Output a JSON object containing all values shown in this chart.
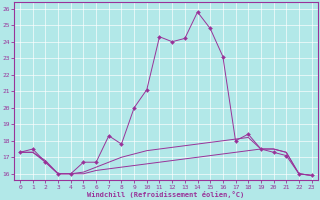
{
  "xlabel": "Windchill (Refroidissement éolien,°C)",
  "background_color": "#b2e8e8",
  "line_color": "#993399",
  "xlim": [
    -0.5,
    23.5
  ],
  "ylim": [
    15.6,
    26.4
  ],
  "yticks": [
    16,
    17,
    18,
    19,
    20,
    21,
    22,
    23,
    24,
    25,
    26
  ],
  "xticks": [
    0,
    1,
    2,
    3,
    4,
    5,
    6,
    7,
    8,
    9,
    10,
    11,
    12,
    13,
    14,
    15,
    16,
    17,
    18,
    19,
    20,
    21,
    22,
    23
  ],
  "grid_color": "#ffffff",
  "series": [
    {
      "x": [
        0,
        1,
        2,
        3,
        4,
        5,
        6,
        7,
        8,
        9,
        10,
        11,
        12,
        13,
        14,
        15,
        16,
        17,
        18,
        19,
        20,
        21,
        22,
        23
      ],
      "y": [
        17.3,
        17.5,
        16.7,
        16.0,
        16.0,
        16.7,
        16.7,
        18.3,
        17.8,
        20.0,
        21.1,
        24.3,
        24.0,
        24.2,
        25.8,
        24.8,
        23.1,
        18.0,
        18.4,
        17.5,
        17.3,
        17.1,
        16.0,
        15.9
      ],
      "marker": true
    },
    {
      "x": [
        0,
        1,
        2,
        3,
        4,
        5,
        6,
        7,
        8,
        9,
        10,
        11,
        12,
        13,
        14,
        15,
        16,
        17,
        18,
        19,
        20,
        21,
        22,
        23
      ],
      "y": [
        17.3,
        17.3,
        16.8,
        16.0,
        16.0,
        16.1,
        16.4,
        16.7,
        17.0,
        17.2,
        17.4,
        17.5,
        17.6,
        17.7,
        17.8,
        17.9,
        18.0,
        18.1,
        18.2,
        17.5,
        17.5,
        17.3,
        16.0,
        15.9
      ],
      "marker": false
    },
    {
      "x": [
        0,
        1,
        2,
        3,
        4,
        5,
        6,
        7,
        8,
        9,
        10,
        11,
        12,
        13,
        14,
        15,
        16,
        17,
        18,
        19,
        20,
        21,
        22,
        23
      ],
      "y": [
        17.3,
        17.3,
        16.7,
        16.0,
        16.0,
        16.0,
        16.2,
        16.3,
        16.4,
        16.5,
        16.6,
        16.7,
        16.8,
        16.9,
        17.0,
        17.1,
        17.2,
        17.3,
        17.4,
        17.5,
        17.5,
        17.3,
        16.0,
        15.9
      ],
      "marker": false
    }
  ]
}
